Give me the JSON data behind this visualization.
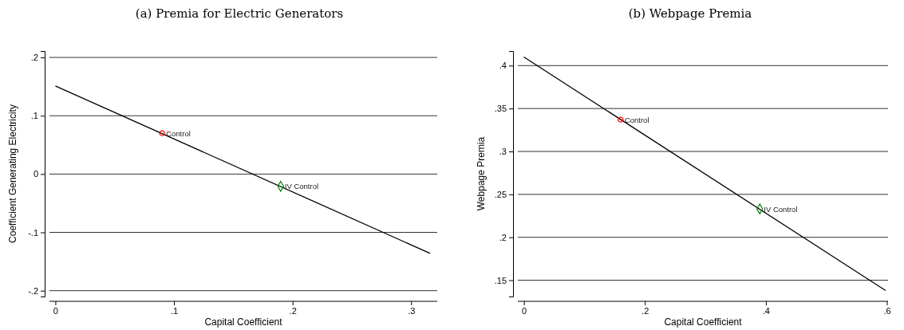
{
  "chart_data": [
    {
      "type": "scatter",
      "title": "(a) Premia for Electric Generators",
      "xlabel": "Capital Coefficient",
      "ylabel": "Coefficient Generating Electricity",
      "xlim": [
        -0.005,
        0.322
      ],
      "ylim": [
        -0.21,
        0.211
      ],
      "xticks": [
        {
          "value": 0,
          "label": "0"
        },
        {
          "value": 0.1,
          "label": ".1"
        },
        {
          "value": 0.2,
          "label": ".2"
        },
        {
          "value": 0.3,
          "label": ".3"
        }
      ],
      "yticks": [
        {
          "value": -0.2,
          "label": "-.2"
        },
        {
          "value": -0.1,
          "label": "-.1"
        },
        {
          "value": 0,
          "label": "0"
        },
        {
          "value": 0.1,
          "label": ".1"
        },
        {
          "value": 0.2,
          "label": ".2"
        }
      ],
      "grid": "y",
      "legend": false,
      "series": [
        {
          "type": "line",
          "color": "#000000",
          "x": [
            0,
            0.316
          ],
          "values": [
            0.151,
            -0.136
          ],
          "marker": "none",
          "line_style": "solid"
        },
        {
          "name": "Control",
          "color": "#ff0000",
          "x": [
            0.09
          ],
          "values": [
            0.07
          ],
          "marker": "circle"
        },
        {
          "name": "IV Control",
          "color": "#008000",
          "x": [
            0.19
          ],
          "values": [
            -0.021
          ],
          "marker": "diamond"
        }
      ]
    },
    {
      "type": "scatter",
      "title": "(b) Webpage Premia",
      "xlabel": "Capital Coefficient",
      "ylabel": "Webpage Premia",
      "xlim": [
        -0.01,
        0.602
      ],
      "ylim": [
        0.131,
        0.417
      ],
      "xticks": [
        {
          "value": 0,
          "label": "0"
        },
        {
          "value": 0.2,
          "label": ".2"
        },
        {
          "value": 0.4,
          "label": ".4"
        },
        {
          "value": 0.6,
          "label": ".6"
        }
      ],
      "yticks": [
        {
          "value": 0.15,
          "label": ".15"
        },
        {
          "value": 0.2,
          "label": ".2"
        },
        {
          "value": 0.25,
          "label": ".25"
        },
        {
          "value": 0.3,
          "label": ".3"
        },
        {
          "value": 0.35,
          "label": ".35"
        },
        {
          "value": 0.4,
          "label": ".4"
        }
      ],
      "grid": "y",
      "legend": false,
      "series": [
        {
          "type": "line",
          "color": "#000000",
          "x": [
            0,
            0.598
          ],
          "values": [
            0.41,
            0.138
          ],
          "marker": "none",
          "line_style": "solid"
        },
        {
          "name": "Control",
          "color": "#ff0000",
          "x": [
            0.16
          ],
          "values": [
            0.337
          ],
          "marker": "circle"
        },
        {
          "name": "IV Control",
          "color": "#008000",
          "x": [
            0.39
          ],
          "values": [
            0.233
          ],
          "marker": "diamond"
        }
      ]
    }
  ]
}
